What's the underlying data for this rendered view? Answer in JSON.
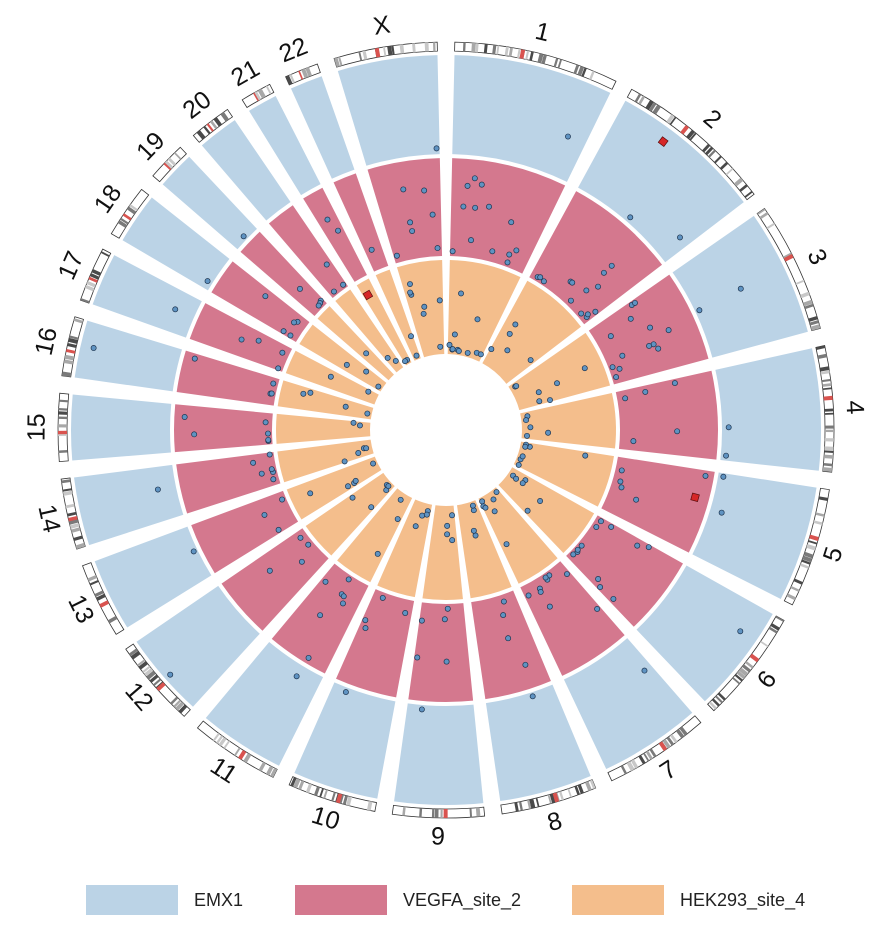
{
  "chart_data": {
    "type": "circos",
    "chromosomes": [
      "1",
      "2",
      "3",
      "4",
      "5",
      "6",
      "7",
      "8",
      "9",
      "10",
      "11",
      "12",
      "13",
      "14",
      "15",
      "16",
      "17",
      "18",
      "19",
      "20",
      "21",
      "22",
      "X"
    ],
    "chromosome_lengths_mb": [
      249,
      242,
      198,
      190,
      181,
      171,
      159,
      145,
      138,
      134,
      135,
      133,
      114,
      107,
      102,
      90,
      83,
      80,
      59,
      64,
      47,
      51,
      156
    ],
    "tracks": [
      {
        "name": "EMX1",
        "color": "#BBD3E6"
      },
      {
        "name": "VEGFA_site_2",
        "color": "#D4788E"
      },
      {
        "name": "HEK293_site_4",
        "color": "#F4BE8C"
      }
    ],
    "point_color": "#5F93C2",
    "highlight_color": "#D62728",
    "highlighted_sites": [
      {
        "track": "EMX1",
        "chromosome": "2"
      },
      {
        "track": "VEGFA_site_2",
        "chromosome": "5"
      },
      {
        "track": "HEK293_site_4",
        "chromosome": "21"
      }
    ],
    "legend_position": "bottom"
  }
}
